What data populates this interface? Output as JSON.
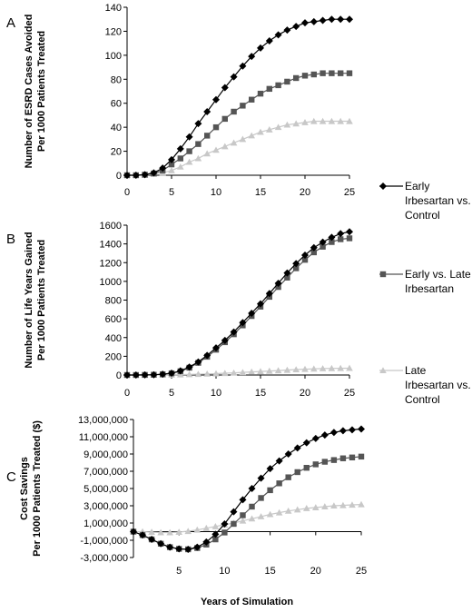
{
  "figure": {
    "x_axis_title": "Years of Simulation",
    "legend": [
      {
        "lines": [
          "Early",
          "Irbesartan vs.",
          "Control"
        ],
        "color": "#000000",
        "marker": "diamond"
      },
      {
        "lines": [
          "Early vs. Late",
          "Irbesartan"
        ],
        "color": "#555555",
        "marker": "square"
      },
      {
        "lines": [
          "Late",
          "Irbesartan vs.",
          "Control"
        ],
        "color": "#c8c8c8",
        "marker": "triangle"
      }
    ]
  },
  "chart_data": [
    {
      "panel": "A",
      "type": "line",
      "ylabel": [
        "Number of ESRD Cases Avoided",
        "Per 1000 Patients Treated"
      ],
      "xlabel": "",
      "xlim": [
        0,
        25
      ],
      "ylim": [
        0,
        140
      ],
      "x_ticks": [
        0,
        5,
        10,
        15,
        20,
        25
      ],
      "y_ticks": [
        "0",
        "20",
        "40",
        "60",
        "80",
        "100",
        "120",
        "140"
      ],
      "y_tick_values": [
        0,
        20,
        40,
        60,
        80,
        100,
        120,
        140
      ],
      "x": [
        0,
        1,
        2,
        3,
        4,
        5,
        6,
        7,
        8,
        9,
        10,
        11,
        12,
        13,
        14,
        15,
        16,
        17,
        18,
        19,
        20,
        21,
        22,
        23,
        24,
        25
      ],
      "series": [
        {
          "name": "Early Irbesartan vs. Control",
          "color": "#000000",
          "marker": "diamond",
          "values": [
            0,
            0,
            0.5,
            2,
            6,
            13,
            22,
            32,
            43,
            53,
            63,
            73,
            82,
            91,
            99,
            106,
            112,
            117,
            121,
            124,
            127,
            128,
            129,
            130,
            130,
            130
          ]
        },
        {
          "name": "Early vs. Late Irbesartan",
          "color": "#555555",
          "marker": "square",
          "values": [
            0,
            0,
            0.5,
            1.5,
            4,
            9,
            14,
            20,
            26,
            33,
            40,
            47,
            53,
            58,
            63,
            68,
            72,
            75,
            78,
            81,
            83,
            84,
            85,
            85,
            85,
            85
          ]
        },
        {
          "name": "Late Irbesartan vs. Control",
          "color": "#c8c8c8",
          "marker": "triangle",
          "values": [
            0,
            0,
            0,
            1,
            2,
            4,
            7,
            11,
            14,
            18,
            21,
            24,
            27,
            30,
            33,
            36,
            38,
            40,
            42,
            43,
            44,
            45,
            45,
            45,
            45,
            45
          ]
        }
      ]
    },
    {
      "panel": "B",
      "type": "line",
      "ylabel": [
        "Number of Life Years Gained",
        "Per 1000 Patients Treated"
      ],
      "xlabel": "",
      "xlim": [
        0,
        25
      ],
      "ylim": [
        0,
        1600
      ],
      "x_ticks": [
        0,
        5,
        10,
        15,
        20,
        25
      ],
      "y_ticks": [
        "0",
        "200",
        "400",
        "600",
        "800",
        "1000",
        "1200",
        "1400",
        "1600"
      ],
      "y_tick_values": [
        0,
        200,
        400,
        600,
        800,
        1000,
        1200,
        1400,
        1600
      ],
      "x": [
        0,
        1,
        2,
        3,
        4,
        5,
        6,
        7,
        8,
        9,
        10,
        11,
        12,
        13,
        14,
        15,
        16,
        17,
        18,
        19,
        20,
        21,
        22,
        23,
        24,
        25
      ],
      "series": [
        {
          "name": "Early Irbesartan vs. Control",
          "color": "#000000",
          "marker": "diamond",
          "values": [
            0,
            0,
            1,
            3,
            8,
            20,
            45,
            85,
            140,
            210,
            290,
            370,
            460,
            560,
            660,
            760,
            870,
            980,
            1090,
            1190,
            1280,
            1360,
            1420,
            1470,
            1510,
            1530
          ]
        },
        {
          "name": "Early vs. Late Irbesartan",
          "color": "#555555",
          "marker": "square",
          "values": [
            0,
            0,
            1,
            3,
            8,
            18,
            40,
            78,
            130,
            195,
            270,
            350,
            435,
            530,
            630,
            730,
            835,
            940,
            1040,
            1140,
            1230,
            1310,
            1370,
            1420,
            1450,
            1460
          ]
        },
        {
          "name": "Late Irbesartan vs. Control",
          "color": "#c8c8c8",
          "marker": "triangle",
          "values": [
            0,
            0,
            0,
            0,
            1,
            2,
            4,
            6,
            9,
            12,
            15,
            19,
            23,
            28,
            33,
            38,
            43,
            48,
            53,
            58,
            62,
            66,
            69,
            71,
            72,
            73
          ]
        }
      ]
    },
    {
      "panel": "C",
      "type": "line",
      "ylabel": [
        "Cost Savings",
        "Per 1000 Patients Treated ($)"
      ],
      "xlabel": "Years of Simulation",
      "xlim": [
        0,
        25
      ],
      "ylim": [
        -3000000,
        13000000
      ],
      "x_ticks": [
        5,
        10,
        15,
        20,
        25
      ],
      "y_ticks": [
        "13,000,000",
        "11,000,000",
        "9,000,000",
        "7,000,000",
        "5,000,000",
        "3,000,000",
        "1,000,000",
        "-1,000,000",
        "-3,000,000"
      ],
      "y_tick_values": [
        13000000,
        11000000,
        9000000,
        7000000,
        5000000,
        3000000,
        1000000,
        -1000000,
        -3000000
      ],
      "x": [
        0,
        1,
        2,
        3,
        4,
        5,
        6,
        7,
        8,
        9,
        10,
        11,
        12,
        13,
        14,
        15,
        16,
        17,
        18,
        19,
        20,
        21,
        22,
        23,
        24,
        25
      ],
      "series": [
        {
          "name": "Early Irbesartan vs. Control",
          "color": "#000000",
          "marker": "diamond",
          "values": [
            0,
            -400000,
            -900000,
            -1400000,
            -1800000,
            -2000000,
            -2050000,
            -1800000,
            -1200000,
            -300000,
            900000,
            2300000,
            3700000,
            5000000,
            6200000,
            7300000,
            8200000,
            9000000,
            9700000,
            10300000,
            10800000,
            11200000,
            11500000,
            11700000,
            11800000,
            11900000
          ]
        },
        {
          "name": "Early vs. Late Irbesartan",
          "color": "#555555",
          "marker": "square",
          "values": [
            0,
            -400000,
            -900000,
            -1400000,
            -1800000,
            -2000000,
            -2050000,
            -1900000,
            -1500000,
            -900000,
            -100000,
            900000,
            1900000,
            2900000,
            3900000,
            4800000,
            5600000,
            6300000,
            6900000,
            7400000,
            7800000,
            8100000,
            8300000,
            8500000,
            8600000,
            8700000
          ]
        },
        {
          "name": "Late Irbesartan vs. Control",
          "color": "#c8c8c8",
          "marker": "triangle",
          "values": [
            0,
            0,
            -50000,
            -100000,
            -100000,
            -50000,
            50000,
            200000,
            400000,
            600000,
            800000,
            1000000,
            1250000,
            1500000,
            1750000,
            2000000,
            2200000,
            2400000,
            2550000,
            2700000,
            2800000,
            2900000,
            3000000,
            3050000,
            3100000,
            3150000
          ]
        }
      ]
    }
  ]
}
